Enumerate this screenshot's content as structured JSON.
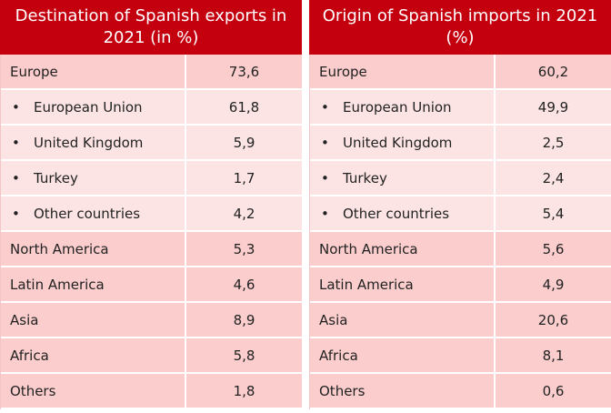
{
  "exports": {
    "title": "Destination of Spanish exports in 2021 (in %)",
    "rows": [
      {
        "label": "Europe",
        "value": "73,6",
        "sub": false
      },
      {
        "label": "European Union",
        "value": "61,8",
        "sub": true
      },
      {
        "label": "United Kingdom",
        "value": "5,9",
        "sub": true
      },
      {
        "label": "Turkey",
        "value": "1,7",
        "sub": true
      },
      {
        "label": "Other countries",
        "value": "4,2",
        "sub": true
      },
      {
        "label": "North America",
        "value": "5,3",
        "sub": false
      },
      {
        "label": "Latin America",
        "value": "4,6",
        "sub": false
      },
      {
        "label": "Asia",
        "value": "8,9",
        "sub": false
      },
      {
        "label": "Africa",
        "value": "5,8",
        "sub": false
      },
      {
        "label": "Others",
        "value": "1,8",
        "sub": false
      }
    ]
  },
  "imports": {
    "title": "Origin of Spanish imports in 2021 (%)",
    "rows": [
      {
        "label": "Europe",
        "value": "60,2",
        "sub": false
      },
      {
        "label": "European Union",
        "value": "49,9",
        "sub": true
      },
      {
        "label": "United Kingdom",
        "value": "2,5",
        "sub": true
      },
      {
        "label": "Turkey",
        "value": "2,4",
        "sub": true
      },
      {
        "label": "Other countries",
        "value": "5,4",
        "sub": true
      },
      {
        "label": "North America",
        "value": "5,6",
        "sub": false
      },
      {
        "label": "Latin America",
        "value": "4,9",
        "sub": false
      },
      {
        "label": "Asia",
        "value": "20,6",
        "sub": false
      },
      {
        "label": "Africa",
        "value": "8,1",
        "sub": false
      },
      {
        "label": "Others",
        "value": "0,6",
        "sub": false
      }
    ]
  },
  "bullet_symbol": "•",
  "colors": {
    "header_bg": "#c4000f",
    "main_row_bg": "#fbcdcd",
    "sub_row_bg": "#fde4e4"
  }
}
